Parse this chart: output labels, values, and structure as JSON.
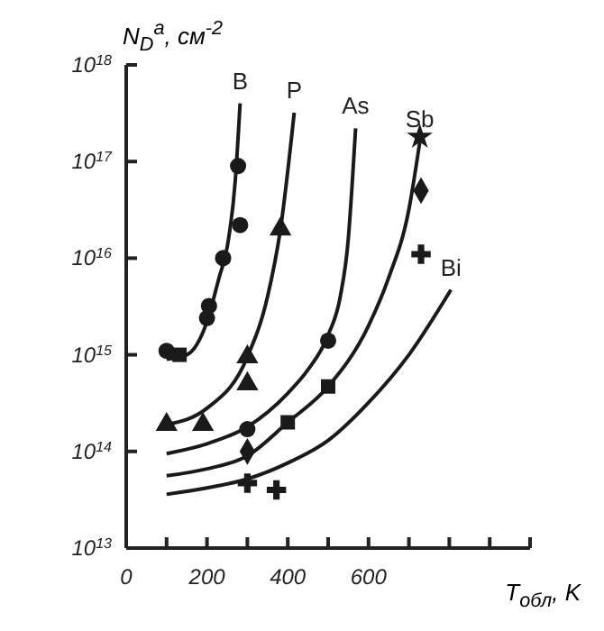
{
  "chart_data": {
    "type": "line",
    "xlabel": "T$_{обл}$, K",
    "ylabel": "N$_{D}$$^{a}$, см$^{-2}$",
    "log": "y",
    "grid": false,
    "legend": false,
    "line_style": "solid",
    "marker": "none",
    "xlim": [
      0,
      1000
    ],
    "xticks": [
      0,
      {
        "value": 100,
        "label": null
      },
      200,
      {
        "value": 300,
        "label": null
      },
      400,
      {
        "value": 500,
        "label": null
      },
      600,
      {
        "value": 700,
        "label": null
      },
      {
        "value": 800,
        "label": null
      },
      {
        "value": 900,
        "label": null
      },
      {
        "value": 1000,
        "label": null
      }
    ],
    "ylim": [
      10000000000000.0,
      1e+18
    ],
    "yticks": [
      {
        "value": 10000000000000.0,
        "label": "10$^{13}$"
      },
      {
        "value": 100000000000000.0,
        "label": "10$^{14}$"
      },
      {
        "value": 1000000000000000.0,
        "label": "10$^{15}$"
      },
      {
        "value": 1e+16,
        "label": "10$^{16}$"
      },
      {
        "value": 1e+17,
        "label": "10$^{17}$"
      },
      {
        "value": 1e+18,
        "label": "10$^{18}$"
      }
    ],
    "series": [
      {
        "name": "B",
        "color": "#1a1a1a",
        "x": [
          100,
          150,
          200,
          230,
          250,
          270,
          282
        ],
        "values": [
          900000000000000.0,
          1000000000000000.0,
          2200000000000000.0,
          6300000000000000.0,
          1.3e+16,
          6.3e+16,
          4e+17
        ]
      },
      {
        "name": "P",
        "color": "#1a1a1a",
        "x": [
          100,
          200,
          300,
          350,
          382,
          416
        ],
        "values": [
          190000000000000.0,
          280000000000000.0,
          950000000000000.0,
          4000000000000000.0,
          2e+16,
          3.2e+17
        ]
      },
      {
        "name": "As",
        "color": "#1a1a1a",
        "x": [
          100,
          200,
          300,
          400,
          450,
          500,
          530,
          550,
          560,
          568
        ],
        "values": [
          95000000000000.0,
          120000000000000.0,
          180000000000000.0,
          400000000000000.0,
          700000000000000.0,
          1600000000000000.0,
          4000000000000000.0,
          1.6e+16,
          6.3e+16,
          2.2e+17
        ]
      },
      {
        "name": "Sb",
        "color": "#1a1a1a",
        "x": [
          100,
          200,
          300,
          400,
          500,
          600,
          650,
          700,
          727
        ],
        "values": [
          56000000000000.0,
          66000000000000.0,
          90000000000000.0,
          200000000000000.0,
          470000000000000.0,
          2000000000000000.0,
          6300000000000000.0,
          3.2e+16,
          1.6e+17
        ]
      },
      {
        "name": "Bi",
        "color": "#1a1a1a",
        "x": [
          100,
          200,
          300,
          400,
          500,
          600,
          700,
          804
        ],
        "values": [
          36000000000000.0,
          42000000000000.0,
          52000000000000.0,
          76000000000000.0,
          130000000000000.0,
          320000000000000.0,
          1000000000000000.0,
          4700000000000000.0
        ]
      },
      {
        "type": "scatter",
        "marker": "circle",
        "color": "#1a1a1a",
        "x": [
          100,
          200,
          277,
          282,
          240,
          205,
          300,
          500
        ],
        "values": [
          1100000000000000.0,
          2400000000000000.0,
          9e+16,
          2.2e+16,
          1e+16,
          3200000000000000.0,
          170000000000000.0,
          1400000000000000.0
        ]
      },
      {
        "type": "scatter",
        "marker": "square",
        "color": "#1a1a1a",
        "x": [
          132,
          400,
          500
        ],
        "values": [
          1000000000000000.0,
          200000000000000.0,
          470000000000000.0
        ]
      },
      {
        "type": "scatter",
        "marker": "triangle",
        "color": "#1a1a1a",
        "x": [
          100,
          190,
          300,
          300,
          382
        ],
        "values": [
          190000000000000.0,
          190000000000000.0,
          950000000000000.0,
          500000000000000.0,
          2e+16
        ]
      },
      {
        "type": "scatter",
        "marker": "diamond",
        "color": "#1a1a1a",
        "x": [
          730,
          300
        ],
        "values": [
          5e+16,
          100000000000000.0
        ]
      },
      {
        "type": "scatter",
        "marker": "star",
        "color": "#1a1a1a",
        "x": [
          727
        ],
        "values": [
          1.8e+17
        ]
      },
      {
        "type": "scatter",
        "marker": "cross",
        "color": "#1a1a1a",
        "x": [
          730,
          300,
          372
        ],
        "values": [
          1.1e+16,
          47000000000000.0,
          40000000000000.0
        ]
      }
    ]
  }
}
